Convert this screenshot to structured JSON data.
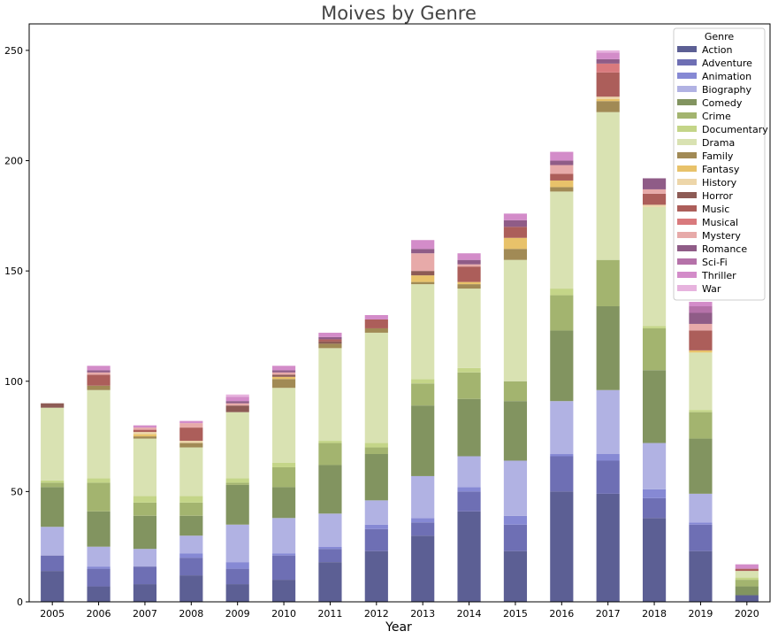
{
  "chart_data": {
    "type": "bar",
    "stacked": true,
    "title": "Moives by Genre",
    "xlabel": "Year",
    "ylabel": "",
    "ylim": [
      0,
      262
    ],
    "yticks": [
      0,
      50,
      100,
      150,
      200,
      250
    ],
    "grid": false,
    "legend_title": "Genre",
    "legend_position": "top-right",
    "categories": [
      "2005",
      "2006",
      "2007",
      "2008",
      "2009",
      "2010",
      "2011",
      "2012",
      "2013",
      "2014",
      "2015",
      "2016",
      "2017",
      "2018",
      "2019",
      "2020"
    ],
    "series": [
      {
        "name": "Action",
        "color": "#5c5f94",
        "values": [
          14,
          7,
          8,
          12,
          8,
          10,
          18,
          23,
          30,
          41,
          23,
          50,
          49,
          38,
          23,
          3
        ]
      },
      {
        "name": "Adventure",
        "color": "#6e6fb4",
        "values": [
          7,
          8,
          8,
          8,
          7,
          11,
          6,
          10,
          6,
          9,
          12,
          16,
          15,
          9,
          12,
          0
        ]
      },
      {
        "name": "Animation",
        "color": "#8689d4",
        "values": [
          0,
          1,
          0,
          2,
          3,
          1,
          1,
          2,
          2,
          2,
          4,
          1,
          3,
          4,
          1,
          0
        ]
      },
      {
        "name": "Biography",
        "color": "#b1b2e3",
        "values": [
          13,
          9,
          8,
          8,
          17,
          16,
          15,
          11,
          19,
          14,
          25,
          24,
          29,
          21,
          13,
          0
        ]
      },
      {
        "name": "Comedy",
        "color": "#829460",
        "values": [
          18,
          16,
          15,
          9,
          18,
          14,
          22,
          21,
          32,
          26,
          27,
          32,
          38,
          33,
          25,
          4
        ]
      },
      {
        "name": "Crime",
        "color": "#a3b46f",
        "values": [
          2,
          13,
          6,
          6,
          1,
          9,
          10,
          3,
          10,
          12,
          9,
          16,
          21,
          19,
          12,
          3
        ]
      },
      {
        "name": "Documentary",
        "color": "#c4d588",
        "values": [
          1,
          2,
          3,
          3,
          2,
          2,
          1,
          2,
          2,
          2,
          0,
          3,
          0,
          1,
          1,
          1
        ]
      },
      {
        "name": "Drama",
        "color": "#d9e2b2",
        "values": [
          33,
          40,
          26,
          22,
          30,
          34,
          42,
          50,
          43,
          36,
          55,
          44,
          67,
          54,
          26,
          3
        ]
      },
      {
        "name": "Family",
        "color": "#a18a55",
        "values": [
          0,
          2,
          1,
          2,
          0,
          4,
          2,
          2,
          1,
          2,
          5,
          2,
          5,
          0,
          0,
          0
        ]
      },
      {
        "name": "Fantasy",
        "color": "#e8c26a",
        "values": [
          0,
          0,
          1,
          0,
          0,
          1,
          0,
          0,
          3,
          1,
          5,
          3,
          1,
          0,
          1,
          0
        ]
      },
      {
        "name": "History",
        "color": "#edd6a9",
        "values": [
          0,
          0,
          1,
          1,
          0,
          0,
          0,
          0,
          0,
          0,
          0,
          0,
          1,
          1,
          0,
          0
        ]
      },
      {
        "name": "Horror",
        "color": "#8d5b55",
        "values": [
          2,
          0,
          0,
          0,
          3,
          1,
          1,
          0,
          2,
          0,
          0,
          0,
          0,
          0,
          0,
          0
        ]
      },
      {
        "name": "Music",
        "color": "#ac5e5a",
        "values": [
          0,
          5,
          1,
          6,
          0,
          0,
          1,
          4,
          0,
          7,
          5,
          3,
          11,
          5,
          9,
          1
        ]
      },
      {
        "name": "Musical",
        "color": "#d97a7d",
        "values": [
          0,
          0,
          0,
          0,
          0,
          0,
          0,
          0,
          0,
          0,
          0,
          0,
          4,
          0,
          0,
          0
        ]
      },
      {
        "name": "Mystery",
        "color": "#e7aaa9",
        "values": [
          0,
          1,
          1,
          2,
          1,
          1,
          0,
          0,
          8,
          1,
          0,
          4,
          0,
          2,
          3,
          0
        ]
      },
      {
        "name": "Romance",
        "color": "#8f5c87",
        "values": [
          0,
          1,
          0,
          0,
          1,
          1,
          1,
          0,
          2,
          2,
          3,
          2,
          2,
          5,
          5,
          0
        ]
      },
      {
        "name": "Sci-Fi",
        "color": "#b572a9",
        "values": [
          0,
          0,
          0,
          0,
          0,
          0,
          0,
          0,
          0,
          0,
          0,
          0,
          0,
          0,
          3,
          0
        ]
      },
      {
        "name": "Thriller",
        "color": "#d38cc9",
        "values": [
          0,
          2,
          1,
          1,
          2,
          2,
          2,
          2,
          4,
          3,
          3,
          4,
          3,
          0,
          2,
          2
        ]
      },
      {
        "name": "War",
        "color": "#e7b3de",
        "values": [
          0,
          0,
          0,
          0,
          1,
          0,
          0,
          0,
          0,
          0,
          0,
          0,
          1,
          0,
          0,
          0
        ]
      }
    ]
  }
}
